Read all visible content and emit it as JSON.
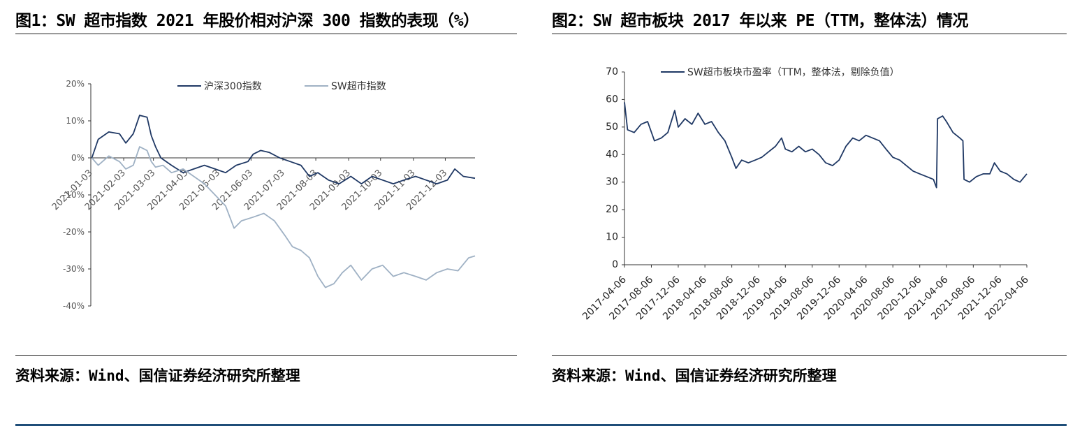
{
  "left": {
    "title": "图1：SW 超市指数 2021 年股价相对沪深 300 指数的表现（%）",
    "source": "资料来源：Wind、国信证券经济研究所整理"
  },
  "right": {
    "title": "图2：SW 超市板块 2017 年以来 PE（TTM，整体法）情况",
    "source": "资料来源：Wind、国信证券经济研究所整理"
  },
  "chart_data": [
    {
      "type": "line",
      "title": "",
      "xlabel": "",
      "ylabel": "",
      "ylim": [
        -40,
        20
      ],
      "yticks": [
        20,
        10,
        0,
        -10,
        -20,
        -30,
        -40
      ],
      "ytick_labels": [
        "20%",
        "10%",
        "0%",
        "-10%",
        "-20%",
        "-30%",
        "-40%"
      ],
      "xtick_labels": [
        "2021-01-03",
        "2021-02-03",
        "2021-03-03",
        "2021-04-03",
        "2021-05-03",
        "2021-06-03",
        "2021-07-03",
        "2021-08-03",
        "2021-09-03",
        "2021-10-03",
        "2021-11-03",
        "2021-12-03"
      ],
      "legend_position": "top",
      "grid": false,
      "series": [
        {
          "name": "沪深300指数",
          "color": "#1f3864",
          "points": [
            [
              "2021-01-04",
              0
            ],
            [
              "2021-01-10",
              5
            ],
            [
              "2021-01-20",
              7
            ],
            [
              "2021-01-30",
              6.5
            ],
            [
              "2021-02-05",
              4
            ],
            [
              "2021-02-12",
              6.5
            ],
            [
              "2021-02-18",
              11.5
            ],
            [
              "2021-02-25",
              11
            ],
            [
              "2021-03-01",
              6
            ],
            [
              "2021-03-05",
              3
            ],
            [
              "2021-03-10",
              0
            ],
            [
              "2021-03-20",
              -2
            ],
            [
              "2021-03-31",
              -4
            ],
            [
              "2021-04-10",
              -3
            ],
            [
              "2021-04-20",
              -2
            ],
            [
              "2021-04-30",
              -3
            ],
            [
              "2021-05-10",
              -4
            ],
            [
              "2021-05-20",
              -2
            ],
            [
              "2021-05-31",
              -1
            ],
            [
              "2021-06-05",
              1
            ],
            [
              "2021-06-12",
              2
            ],
            [
              "2021-06-20",
              1.5
            ],
            [
              "2021-06-30",
              0
            ],
            [
              "2021-07-10",
              -1
            ],
            [
              "2021-07-20",
              -2
            ],
            [
              "2021-07-28",
              -5
            ],
            [
              "2021-08-05",
              -4
            ],
            [
              "2021-08-15",
              -6
            ],
            [
              "2021-08-25",
              -7
            ],
            [
              "2021-09-05",
              -5
            ],
            [
              "2021-09-15",
              -7
            ],
            [
              "2021-09-25",
              -5
            ],
            [
              "2021-10-05",
              -6
            ],
            [
              "2021-10-15",
              -7
            ],
            [
              "2021-10-25",
              -6
            ],
            [
              "2021-11-05",
              -5
            ],
            [
              "2021-11-15",
              -6
            ],
            [
              "2021-11-25",
              -7
            ],
            [
              "2021-12-05",
              -6
            ],
            [
              "2021-12-12",
              -3
            ],
            [
              "2021-12-20",
              -5
            ],
            [
              "2021-12-31",
              -5.5
            ]
          ]
        },
        {
          "name": "SW超市指数",
          "color": "#9fb1c4",
          "points": [
            [
              "2021-01-04",
              0
            ],
            [
              "2021-01-10",
              -2
            ],
            [
              "2021-01-20",
              0.5
            ],
            [
              "2021-01-30",
              -1
            ],
            [
              "2021-02-05",
              -3
            ],
            [
              "2021-02-12",
              -2
            ],
            [
              "2021-02-18",
              3
            ],
            [
              "2021-02-25",
              2
            ],
            [
              "2021-03-01",
              -1
            ],
            [
              "2021-03-05",
              -2.5
            ],
            [
              "2021-03-12",
              -2
            ],
            [
              "2021-03-20",
              -4
            ],
            [
              "2021-03-31",
              -3
            ],
            [
              "2021-04-10",
              -5
            ],
            [
              "2021-04-20",
              -7
            ],
            [
              "2021-04-30",
              -10
            ],
            [
              "2021-05-10",
              -13
            ],
            [
              "2021-05-18",
              -19
            ],
            [
              "2021-05-25",
              -17
            ],
            [
              "2021-06-05",
              -16
            ],
            [
              "2021-06-15",
              -15
            ],
            [
              "2021-06-25",
              -17
            ],
            [
              "2021-07-05",
              -21
            ],
            [
              "2021-07-12",
              -24
            ],
            [
              "2021-07-20",
              -25
            ],
            [
              "2021-07-28",
              -27
            ],
            [
              "2021-08-05",
              -32
            ],
            [
              "2021-08-12",
              -35
            ],
            [
              "2021-08-20",
              -34
            ],
            [
              "2021-08-28",
              -31
            ],
            [
              "2021-09-05",
              -29
            ],
            [
              "2021-09-15",
              -33
            ],
            [
              "2021-09-25",
              -30
            ],
            [
              "2021-10-05",
              -29
            ],
            [
              "2021-10-15",
              -32
            ],
            [
              "2021-10-25",
              -31
            ],
            [
              "2021-11-05",
              -32
            ],
            [
              "2021-11-15",
              -33
            ],
            [
              "2021-11-25",
              -31
            ],
            [
              "2021-12-05",
              -30
            ],
            [
              "2021-12-15",
              -30.5
            ],
            [
              "2021-12-25",
              -27
            ],
            [
              "2021-12-31",
              -26.5
            ]
          ]
        }
      ]
    },
    {
      "type": "line",
      "title": "",
      "xlabel": "",
      "ylabel": "",
      "ylim": [
        0,
        70
      ],
      "yticks": [
        70,
        60,
        50,
        40,
        30,
        20,
        10,
        0
      ],
      "xtick_labels": [
        "2017-04-06",
        "2017-08-06",
        "2017-12-06",
        "2018-04-06",
        "2018-08-06",
        "2018-12-06",
        "2019-04-06",
        "2019-08-06",
        "2019-12-06",
        "2020-04-06",
        "2020-08-06",
        "2020-12-06",
        "2021-04-06",
        "2021-08-06",
        "2021-12-06",
        "2022-04-06"
      ],
      "legend_position": "top",
      "grid": false,
      "series": [
        {
          "name": "SW超市板块市盈率（TTM，整体法，剔除负值）",
          "color": "#1f3864",
          "points": [
            [
              "2017-04-06",
              59
            ],
            [
              "2017-04-20",
              49
            ],
            [
              "2017-05-20",
              48
            ],
            [
              "2017-06-20",
              51
            ],
            [
              "2017-07-20",
              52
            ],
            [
              "2017-08-20",
              45
            ],
            [
              "2017-09-20",
              46
            ],
            [
              "2017-10-20",
              48
            ],
            [
              "2017-11-20",
              56
            ],
            [
              "2017-12-06",
              50
            ],
            [
              "2018-01-06",
              53
            ],
            [
              "2018-02-06",
              51
            ],
            [
              "2018-03-06",
              55
            ],
            [
              "2018-04-06",
              51
            ],
            [
              "2018-05-06",
              52
            ],
            [
              "2018-06-06",
              48
            ],
            [
              "2018-07-06",
              45
            ],
            [
              "2018-08-06",
              39
            ],
            [
              "2018-08-25",
              35
            ],
            [
              "2018-09-20",
              38
            ],
            [
              "2018-10-20",
              37
            ],
            [
              "2018-11-20",
              38
            ],
            [
              "2018-12-20",
              39
            ],
            [
              "2019-01-20",
              41
            ],
            [
              "2019-02-20",
              43
            ],
            [
              "2019-03-20",
              46
            ],
            [
              "2019-04-06",
              42
            ],
            [
              "2019-05-06",
              41
            ],
            [
              "2019-06-06",
              43
            ],
            [
              "2019-07-06",
              41
            ],
            [
              "2019-08-06",
              42
            ],
            [
              "2019-09-06",
              40
            ],
            [
              "2019-10-06",
              37
            ],
            [
              "2019-11-06",
              36
            ],
            [
              "2019-12-06",
              38
            ],
            [
              "2020-01-06",
              43
            ],
            [
              "2020-02-06",
              46
            ],
            [
              "2020-03-06",
              45
            ],
            [
              "2020-04-06",
              47
            ],
            [
              "2020-05-06",
              46
            ],
            [
              "2020-06-06",
              45
            ],
            [
              "2020-07-06",
              42
            ],
            [
              "2020-08-06",
              39
            ],
            [
              "2020-09-06",
              38
            ],
            [
              "2020-10-06",
              36
            ],
            [
              "2020-11-06",
              34
            ],
            [
              "2020-12-06",
              33
            ],
            [
              "2021-01-06",
              32
            ],
            [
              "2021-02-06",
              31
            ],
            [
              "2021-02-20",
              28
            ],
            [
              "2021-02-25",
              53
            ],
            [
              "2021-03-20",
              54
            ],
            [
              "2021-04-06",
              52
            ],
            [
              "2021-05-06",
              48
            ],
            [
              "2021-06-06",
              46
            ],
            [
              "2021-06-20",
              45
            ],
            [
              "2021-06-25",
              31
            ],
            [
              "2021-07-20",
              30
            ],
            [
              "2021-08-20",
              32
            ],
            [
              "2021-09-20",
              33
            ],
            [
              "2021-10-20",
              33
            ],
            [
              "2021-11-10",
              37
            ],
            [
              "2021-12-06",
              34
            ],
            [
              "2022-01-06",
              33
            ],
            [
              "2022-02-06",
              31
            ],
            [
              "2022-03-06",
              30
            ],
            [
              "2022-04-06",
              33
            ]
          ]
        }
      ]
    }
  ]
}
